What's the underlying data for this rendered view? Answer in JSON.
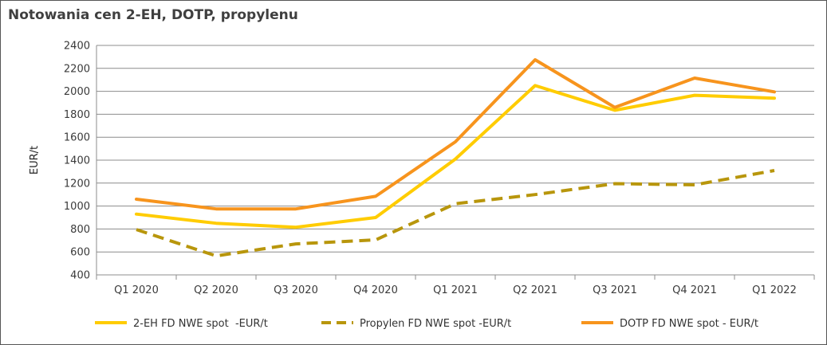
{
  "chart_data": {
    "type": "line",
    "title": "Notowania cen 2-EH, DOTP, propylenu",
    "ylabel": "EUR/t",
    "xlabel": "",
    "ylim": [
      400,
      2400
    ],
    "yticks": [
      400,
      600,
      800,
      1000,
      1200,
      1400,
      1600,
      1800,
      2000,
      2200,
      2400
    ],
    "categories": [
      "Q1 2020",
      "Q2 2020",
      "Q3 2020",
      "Q4 2020",
      "Q1 2021",
      "Q2 2021",
      "Q3 2021",
      "Q4 2021",
      "Q1 2022"
    ],
    "grid": true,
    "legend_position": "bottom",
    "series": [
      {
        "name": "2-EH FD NWE spot  -EUR/t",
        "values": [
          930,
          850,
          815,
          900,
          1410,
          2050,
          1835,
          1965,
          1940
        ],
        "color": "#FFCC00",
        "dash": "solid"
      },
      {
        "name": "Propylen FD NWE spot -EUR/t",
        "values": [
          795,
          565,
          670,
          705,
          1020,
          1100,
          1195,
          1185,
          1310
        ],
        "color": "#B8960C",
        "dash": "dashed"
      },
      {
        "name": "DOTP FD NWE spot - EUR/t",
        "values": [
          1060,
          975,
          975,
          1085,
          1560,
          2275,
          1860,
          2115,
          1995
        ],
        "color": "#F7941D",
        "dash": "solid"
      }
    ]
  }
}
